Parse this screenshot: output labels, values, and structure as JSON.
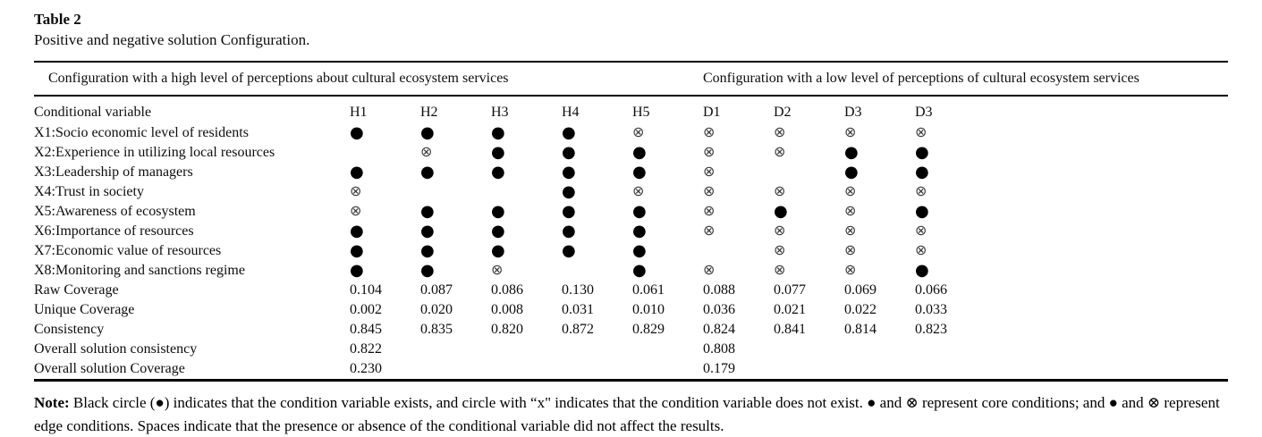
{
  "page": {
    "label": "Table 2",
    "caption": "Positive and negative solution Configuration."
  },
  "table": {
    "group_headers": [
      "Configuration with a high level of perceptions about cultural ecosystem services",
      "Configuration with a low level of perceptions of cultural ecosystem services"
    ],
    "columns": [
      "Conditional variable",
      "H1",
      "H2",
      "H3",
      "H4",
      "H5",
      "D1",
      "D2",
      "D3",
      "D3"
    ],
    "symbols": {
      "present": "●",
      "absent": "⊗",
      "blank": ""
    },
    "rows": [
      {
        "label": "X1:Socio economic level of residents",
        "cells": [
          "present",
          "present",
          "present",
          "present",
          "absent",
          "absent",
          "absent",
          "absent",
          "absent"
        ]
      },
      {
        "label": "X2:Experience in utilizing local resources",
        "cells": [
          "",
          "absent",
          "present",
          "present",
          "present",
          "absent",
          "absent",
          "present",
          "present"
        ]
      },
      {
        "label": "X3:Leadership of managers",
        "cells": [
          "present",
          "present",
          "present",
          "present",
          "present",
          "absent",
          "",
          "present",
          "present"
        ]
      },
      {
        "label": "X4:Trust in society",
        "cells": [
          "absent",
          "",
          "",
          "present",
          "absent",
          "absent",
          "absent",
          "absent",
          "absent"
        ]
      },
      {
        "label": "X5:Awareness of ecosystem",
        "cells": [
          "absent",
          "present",
          "present",
          "present",
          "present",
          "absent",
          "present",
          "absent",
          "present"
        ]
      },
      {
        "label": "X6:Importance of resources",
        "cells": [
          "present",
          "present",
          "present",
          "present",
          "present",
          "absent",
          "absent",
          "absent",
          "absent"
        ]
      },
      {
        "label": "X7:Economic value of resources",
        "cells": [
          "present",
          "present",
          "present",
          "present",
          "present",
          "",
          "absent",
          "absent",
          "absent"
        ]
      },
      {
        "label": "X8:Monitoring and sanctions regime",
        "cells": [
          "present",
          "present",
          "absent",
          "",
          "present",
          "absent",
          "absent",
          "absent",
          "present"
        ]
      },
      {
        "label": "Raw Coverage",
        "cells": [
          "0.104",
          "0.087",
          "0.086",
          "0.130",
          "0.061",
          "0.088",
          "0.077",
          "0.069",
          "0.066"
        ]
      },
      {
        "label": "Unique Coverage",
        "cells": [
          "0.002",
          "0.020",
          "0.008",
          "0.031",
          "0.010",
          "0.036",
          "0.021",
          "0.022",
          "0.033"
        ]
      },
      {
        "label": "Consistency",
        "cells": [
          "0.845",
          "0.835",
          "0.820",
          "0.872",
          "0.829",
          "0.824",
          "0.841",
          "0.814",
          "0.823"
        ]
      },
      {
        "label": "Overall solution consistency",
        "cells": [
          "0.822",
          "",
          "",
          "",
          "",
          "0.808",
          "",
          "",
          ""
        ]
      },
      {
        "label": "Overall solution Coverage",
        "cells": [
          "0.230",
          "",
          "",
          "",
          "",
          "0.179",
          "",
          "",
          ""
        ]
      }
    ]
  },
  "note": {
    "label": "Note:",
    "text": " Black circle (●) indicates that the condition variable exists, and circle with “x\" indicates that the condition variable does not exist. ● and ⊗ represent core conditions; and ● and ⊗ represent edge conditions. Spaces indicate that the presence or absence of the conditional variable did not affect the results."
  },
  "colors": {
    "text": "#0d0d0d",
    "rule": "#000000",
    "absent_symbol": "#3d3d3d"
  }
}
